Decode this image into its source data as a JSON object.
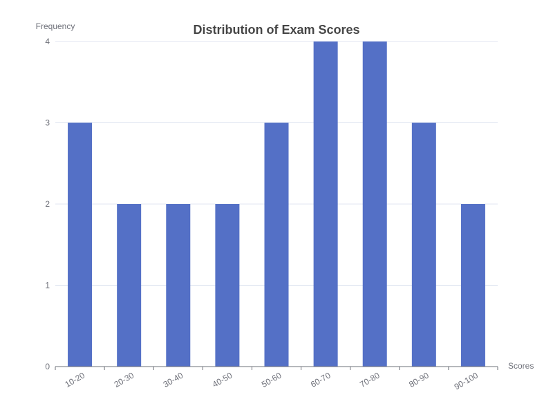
{
  "chart_data": {
    "type": "bar",
    "title": "Distribution of Exam Scores",
    "xlabel": "Scores",
    "ylabel": "Frequency",
    "categories": [
      "10-20",
      "20-30",
      "30-40",
      "40-50",
      "50-60",
      "60-70",
      "70-80",
      "80-90",
      "90-100"
    ],
    "values": [
      3,
      2,
      2,
      2,
      3,
      4,
      4,
      3,
      2
    ],
    "ylim": [
      0,
      4
    ],
    "yticks": [
      0,
      1,
      2,
      3,
      4
    ],
    "grid": true,
    "legend": "none",
    "bar_color": "#5470c6",
    "axis_color": "#6e7079",
    "grid_color": "#e0e6f1",
    "title_color": "#464646"
  }
}
